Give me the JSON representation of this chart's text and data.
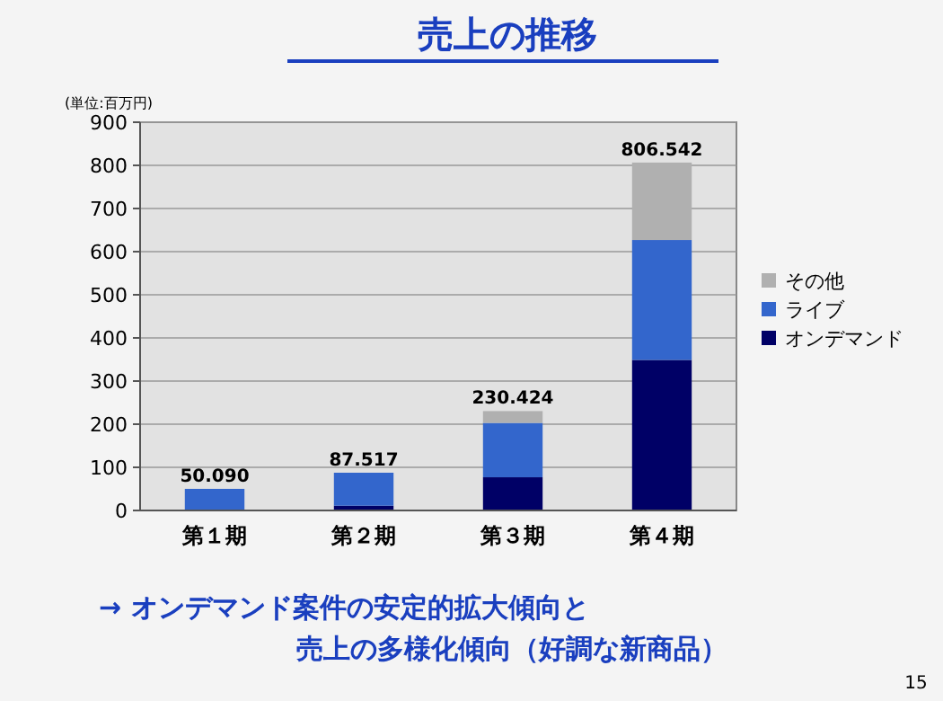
{
  "chart_data": {
    "type": "bar",
    "title": "売上の推移",
    "ylabel": "(単位:百万円)",
    "categories": [
      "第１期",
      "第２期",
      "第３期",
      "第４期"
    ],
    "series": [
      {
        "name": "オンデマンド",
        "color": "#000066",
        "values": [
          0,
          11,
          77,
          349
        ]
      },
      {
        "name": "ライブ",
        "color": "#3366cc",
        "values": [
          50.09,
          76.517,
          126,
          278
        ]
      },
      {
        "name": "その他",
        "color": "#b0b0b0",
        "values": [
          0,
          0,
          27.424,
          179.542
        ]
      }
    ],
    "stacked": true,
    "totals": [
      "50.090",
      "87.517",
      "230.424",
      "806.542"
    ],
    "ylim": [
      0,
      900
    ],
    "yticks": [
      0,
      100,
      200,
      300,
      400,
      500,
      600,
      700,
      800,
      900
    ],
    "grid": "y",
    "legend": "right",
    "annotations": [
      "→  オンデマンド案件の安定的拡大傾向と",
      "売上の多様化傾向（好調な新商品）",
      "15"
    ]
  }
}
